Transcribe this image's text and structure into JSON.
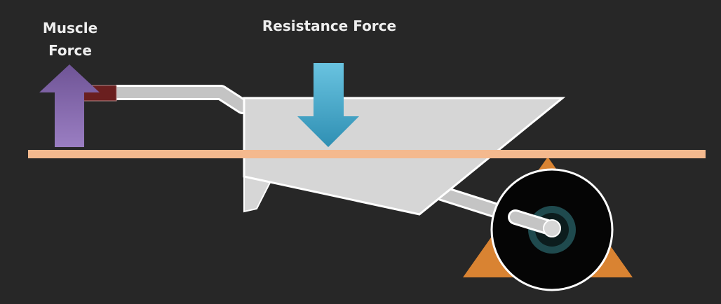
{
  "labels": {
    "muscle_force_line1": "Muscle",
    "muscle_force_line2": "Force",
    "resistance_force": "Resistance Force"
  },
  "colors": {
    "background": "#272727",
    "lever": "#f4b98e",
    "muscle_arrow": "#8a6bb0",
    "resistance_arrow": "#3aa6cc",
    "fulcrum": "#d98332",
    "tray": "#d6d6d6",
    "frame": "#c4c4c4",
    "grip": "#6a1f1f",
    "wheel": "#050505",
    "hub": "#1f4a4e"
  }
}
